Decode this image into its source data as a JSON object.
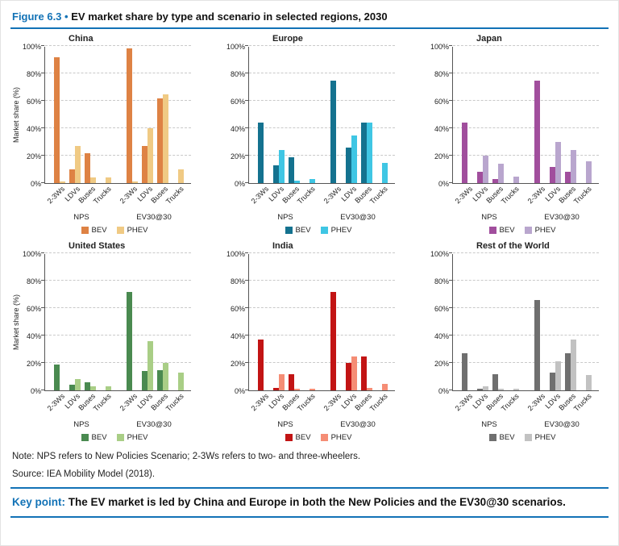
{
  "figure": {
    "label": "Figure 6.3",
    "bullet": "•",
    "title": "EV market share by type and scenario in selected regions, 2030"
  },
  "axes": {
    "ylabel": "Market share (%)",
    "yticks": [
      "0%",
      "20%",
      "40%",
      "60%",
      "80%",
      "100%"
    ],
    "categories": [
      "2-3Ws",
      "LDVs",
      "Buses",
      "Trucks"
    ],
    "groups": [
      "NPS",
      "EV30@30"
    ]
  },
  "legend": {
    "bev": "BEV",
    "phev": "PHEV"
  },
  "colors": {
    "accent_blue": "#1272B6"
  },
  "chart_data": [
    {
      "type": "bar",
      "title": "China",
      "ylabel": "Market share (%)",
      "ylim": [
        0,
        100
      ],
      "groups": [
        "NPS",
        "EV30@30"
      ],
      "categories": [
        "2-3Ws",
        "LDVs",
        "Buses",
        "Trucks"
      ],
      "colors": {
        "BEV": "#DE8244",
        "PHEV": "#F0CA84"
      },
      "series": [
        {
          "name": "BEV",
          "values": [
            [
              92,
              10,
              22,
              0
            ],
            [
              98,
              27,
              62,
              0
            ]
          ]
        },
        {
          "name": "PHEV",
          "values": [
            [
              1,
              27,
              4,
              4
            ],
            [
              1,
              40,
              65,
              10
            ]
          ]
        }
      ]
    },
    {
      "type": "bar",
      "title": "Europe",
      "ylabel": "Market share (%)",
      "ylim": [
        0,
        100
      ],
      "groups": [
        "NPS",
        "EV30@30"
      ],
      "categories": [
        "2-3Ws",
        "LDVs",
        "Buses",
        "Trucks"
      ],
      "colors": {
        "BEV": "#14728F",
        "PHEV": "#3FC6E4"
      },
      "series": [
        {
          "name": "BEV",
          "values": [
            [
              44,
              13,
              19,
              0
            ],
            [
              75,
              26,
              44,
              0
            ]
          ]
        },
        {
          "name": "PHEV",
          "values": [
            [
              0,
              24,
              2,
              3
            ],
            [
              0,
              35,
              44,
              15
            ]
          ]
        }
      ]
    },
    {
      "type": "bar",
      "title": "Japan",
      "ylabel": "Market share (%)",
      "ylim": [
        0,
        100
      ],
      "groups": [
        "NPS",
        "EV30@30"
      ],
      "categories": [
        "2-3Ws",
        "LDVs",
        "Buses",
        "Trucks"
      ],
      "colors": {
        "BEV": "#A14E9D",
        "PHEV": "#B9A6CE"
      },
      "series": [
        {
          "name": "BEV",
          "values": [
            [
              44,
              8,
              3,
              0
            ],
            [
              75,
              12,
              8,
              0
            ]
          ]
        },
        {
          "name": "PHEV",
          "values": [
            [
              0,
              20,
              14,
              5
            ],
            [
              0,
              30,
              24,
              16
            ]
          ]
        }
      ]
    },
    {
      "type": "bar",
      "title": "United States",
      "ylabel": "Market share (%)",
      "ylim": [
        0,
        100
      ],
      "groups": [
        "NPS",
        "EV30@30"
      ],
      "categories": [
        "2-3Ws",
        "LDVs",
        "Buses",
        "Trucks"
      ],
      "colors": {
        "BEV": "#4A8A50",
        "PHEV": "#A9CE86"
      },
      "series": [
        {
          "name": "BEV",
          "values": [
            [
              19,
              4,
              6,
              0
            ],
            [
              72,
              14,
              15,
              0
            ]
          ]
        },
        {
          "name": "PHEV",
          "values": [
            [
              0,
              8,
              3,
              3
            ],
            [
              0,
              36,
              20,
              13
            ]
          ]
        }
      ]
    },
    {
      "type": "bar",
      "title": "India",
      "ylabel": "Market share (%)",
      "ylim": [
        0,
        100
      ],
      "groups": [
        "NPS",
        "EV30@30"
      ],
      "categories": [
        "2-3Ws",
        "LDVs",
        "Buses",
        "Trucks"
      ],
      "colors": {
        "BEV": "#C21414",
        "PHEV": "#F58D75"
      },
      "series": [
        {
          "name": "BEV",
          "values": [
            [
              37,
              2,
              12,
              0
            ],
            [
              72,
              20,
              25,
              0
            ]
          ]
        },
        {
          "name": "PHEV",
          "values": [
            [
              0,
              12,
              1,
              1
            ],
            [
              0,
              25,
              2,
              5
            ]
          ]
        }
      ]
    },
    {
      "type": "bar",
      "title": "Rest of the World",
      "ylabel": "Market share (%)",
      "ylim": [
        0,
        100
      ],
      "groups": [
        "NPS",
        "EV30@30"
      ],
      "categories": [
        "2-3Ws",
        "LDVs",
        "Buses",
        "Trucks"
      ],
      "colors": {
        "BEV": "#6F6F6F",
        "PHEV": "#C2C2C2"
      },
      "series": [
        {
          "name": "BEV",
          "values": [
            [
              27,
              1,
              12,
              0
            ],
            [
              66,
              13,
              27,
              0
            ]
          ]
        },
        {
          "name": "PHEV",
          "values": [
            [
              0,
              3,
              1,
              1
            ],
            [
              0,
              21,
              37,
              11
            ]
          ]
        }
      ]
    }
  ],
  "notes": {
    "note": "Note: NPS refers to New Policies Scenario; 2-3Ws refers to two- and three-wheelers.",
    "source": "Source: IEA Mobility Model (2018).",
    "key_point_label": "Key point:",
    "key_point_text": "The EV market is led by China and Europe in both the New Policies and the EV30@30 scenarios."
  }
}
